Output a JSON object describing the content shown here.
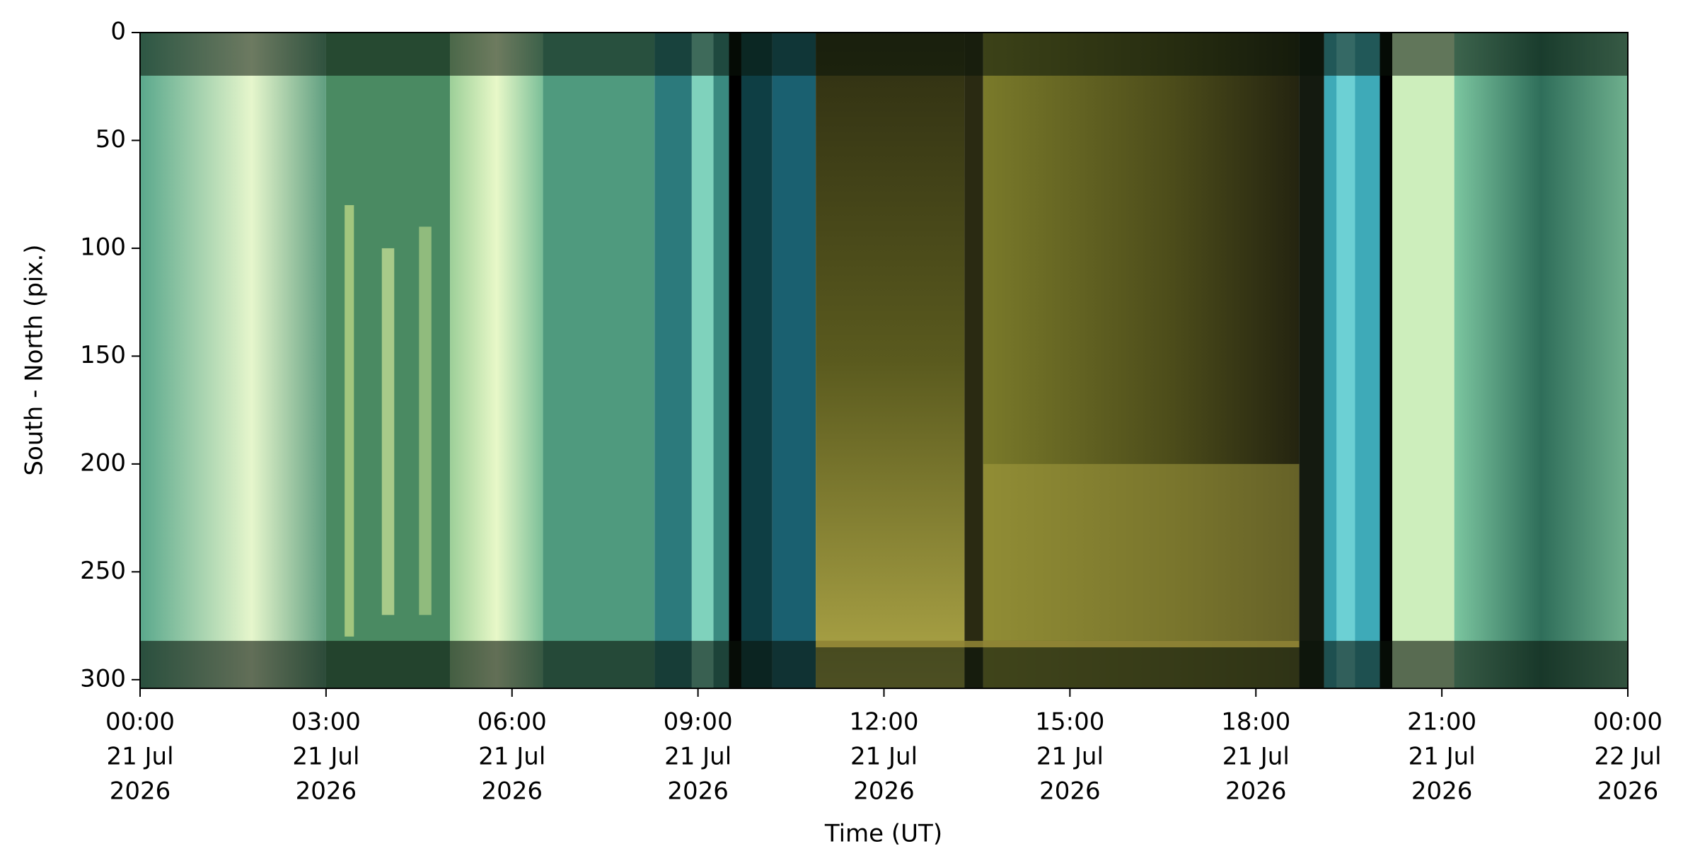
{
  "chart_data": {
    "type": "image",
    "xlabel": "Time (UT)",
    "ylabel": "South - North (pix.)",
    "xlim": [
      "2026-07-21T00:00Z",
      "2026-07-22T00:00Z"
    ],
    "xticks": [
      {
        "value": "2026-07-21T00:00Z",
        "label": [
          "00:00",
          "21 Jul",
          "2026"
        ]
      },
      {
        "value": "2026-07-21T03:00Z",
        "label": [
          "03:00",
          "21 Jul",
          "2026"
        ]
      },
      {
        "value": "2026-07-21T06:00Z",
        "label": [
          "06:00",
          "21 Jul",
          "2026"
        ]
      },
      {
        "value": "2026-07-21T09:00Z",
        "label": [
          "09:00",
          "21 Jul",
          "2026"
        ]
      },
      {
        "value": "2026-07-21T12:00Z",
        "label": [
          "12:00",
          "21 Jul",
          "2026"
        ]
      },
      {
        "value": "2026-07-21T15:00Z",
        "label": [
          "15:00",
          "21 Jul",
          "2026"
        ]
      },
      {
        "value": "2026-07-21T18:00Z",
        "label": [
          "18:00",
          "21 Jul",
          "2026"
        ]
      },
      {
        "value": "2026-07-21T21:00Z",
        "label": [
          "21:00",
          "21 Jul",
          "2026"
        ]
      },
      {
        "value": "2026-07-22T00:00Z",
        "label": [
          "00:00",
          "22 Jul",
          "2026"
        ]
      }
    ],
    "ylim": [
      304,
      0
    ],
    "yticks": [
      0,
      50,
      100,
      150,
      200,
      250,
      300
    ]
  }
}
